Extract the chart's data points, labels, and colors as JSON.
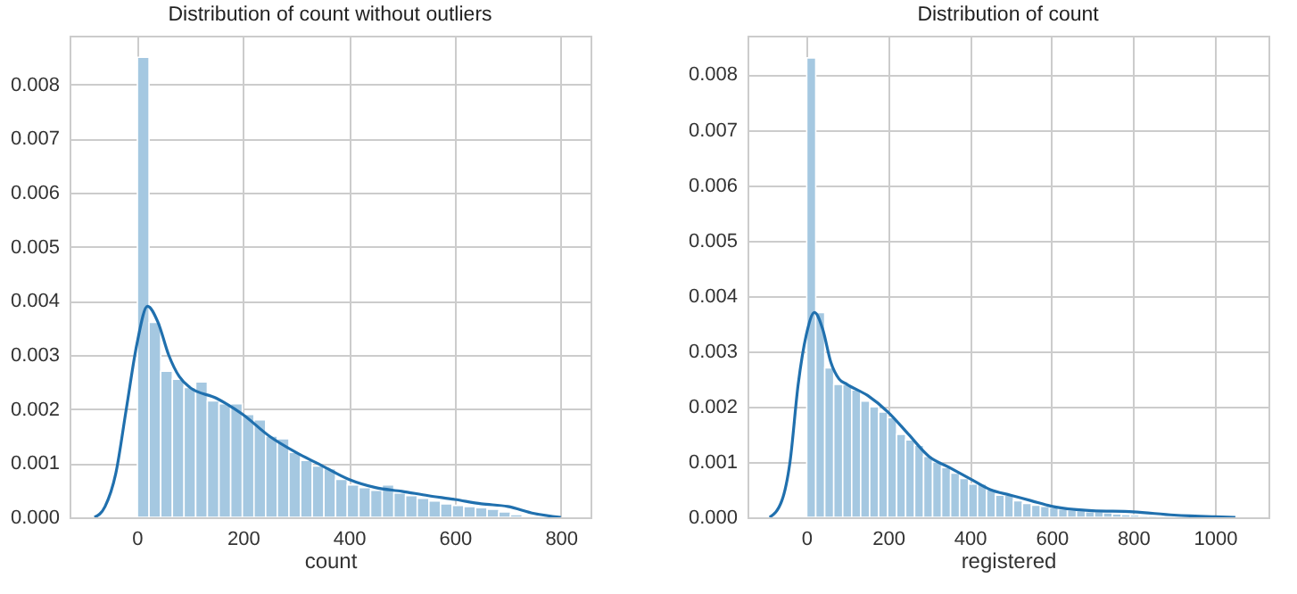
{
  "chart_data": [
    {
      "type": "histogram",
      "title": "Distribution of count without outliers",
      "xlabel": "count",
      "grid": true,
      "xlim": [
        -127,
        856
      ],
      "xticks": [
        0,
        200,
        400,
        600,
        800
      ],
      "ylim": [
        0,
        0.0089
      ],
      "yticks": [
        {
          "value": 0,
          "label": "0.000"
        },
        0.001,
        0.002,
        0.003,
        0.004,
        0.005,
        0.006,
        0.007,
        0.008
      ],
      "series": [
        {
          "type": "histogram",
          "color": "#a5c8e1",
          "bins": [
            1,
            23,
            45,
            67,
            89,
            111,
            133,
            155,
            177,
            199,
            221,
            243,
            265,
            287,
            309,
            331,
            353,
            375,
            397,
            419,
            441,
            463,
            485,
            507,
            529,
            551,
            573,
            595,
            617,
            639,
            661,
            683,
            705,
            727
          ],
          "values": [
            0.0085,
            0.0036,
            0.0027,
            0.00255,
            0.0024,
            0.0025,
            0.00215,
            0.0021,
            0.0021,
            0.0019,
            0.0018,
            0.0015,
            0.00145,
            0.0012,
            0.00105,
            0.00095,
            0.0009,
            0.0007,
            0.0006,
            0.00055,
            0.0005,
            0.0006,
            0.00045,
            0.0004,
            0.00035,
            0.0003,
            0.00025,
            0.00022,
            0.0002,
            0.00018,
            0.00015,
            0.0001,
            5e-05
          ]
        },
        {
          "type": "line",
          "color": "#2070ae",
          "x": [
            -80,
            -60,
            -40,
            -20,
            0,
            20,
            40,
            60,
            80,
            100,
            150,
            200,
            250,
            300,
            350,
            400,
            450,
            500,
            550,
            600,
            650,
            700,
            750,
            800
          ],
          "values": [
            0,
            0.0002,
            0.0008,
            0.002,
            0.0032,
            0.0039,
            0.0036,
            0.003,
            0.0026,
            0.0024,
            0.0022,
            0.0019,
            0.0015,
            0.0012,
            0.00095,
            0.0007,
            0.00055,
            0.00048,
            0.0004,
            0.00033,
            0.00025,
            0.0002,
            7e-05,
            0
          ]
        }
      ]
    },
    {
      "type": "histogram",
      "title": "Distribution of count",
      "xlabel": "registered",
      "grid": true,
      "xlim": [
        -144,
        1131
      ],
      "xticks": [
        0,
        200,
        400,
        600,
        800,
        1000
      ],
      "ylim": [
        0,
        0.0087
      ],
      "yticks": [
        {
          "value": 0,
          "label": "0.000"
        },
        0.001,
        0.002,
        0.003,
        0.004,
        0.005,
        0.006,
        0.007,
        0.008
      ],
      "series": [
        {
          "type": "histogram",
          "color": "#a5c8e1",
          "bins": [
            1,
            23,
            45,
            67,
            89,
            111,
            133,
            155,
            177,
            199,
            221,
            243,
            265,
            287,
            309,
            331,
            353,
            375,
            397,
            419,
            441,
            463,
            485,
            507,
            529,
            551,
            573,
            595,
            617,
            639,
            661,
            683,
            705,
            727,
            749,
            771,
            793,
            815,
            837,
            859,
            881,
            903,
            925,
            947,
            969,
            991
          ],
          "values": [
            0.0083,
            0.0037,
            0.0027,
            0.0024,
            0.0024,
            0.0023,
            0.0021,
            0.002,
            0.0019,
            0.0018,
            0.0015,
            0.0014,
            0.0013,
            0.0011,
            0.001,
            0.0009,
            0.0008,
            0.0007,
            0.0006,
            0.0006,
            0.0005,
            0.0004,
            0.0004,
            0.0003,
            0.00025,
            0.00022,
            0.0002,
            0.00018,
            0.00015,
            0.00013,
            0.00012,
            0.0001,
            0.0001,
            8e-05,
            6e-05,
            5e-05,
            4e-05,
            3e-05,
            3e-05,
            2e-05,
            2e-05,
            1e-05,
            1e-05,
            1e-05,
            1e-05
          ]
        },
        {
          "type": "line",
          "color": "#2070ae",
          "x": [
            -90,
            -60,
            -40,
            -20,
            0,
            20,
            40,
            60,
            80,
            100,
            150,
            200,
            250,
            300,
            350,
            400,
            450,
            500,
            550,
            600,
            700,
            800,
            900,
            1000,
            1050
          ],
          "values": [
            0,
            0.0003,
            0.001,
            0.0024,
            0.0033,
            0.0037,
            0.0034,
            0.0028,
            0.0025,
            0.0024,
            0.0022,
            0.0019,
            0.0015,
            0.0011,
            0.0009,
            0.0007,
            0.0005,
            0.0004,
            0.0003,
            0.0002,
            0.00012,
            0.0001,
            4e-05,
            1e-05,
            0
          ]
        }
      ]
    }
  ]
}
